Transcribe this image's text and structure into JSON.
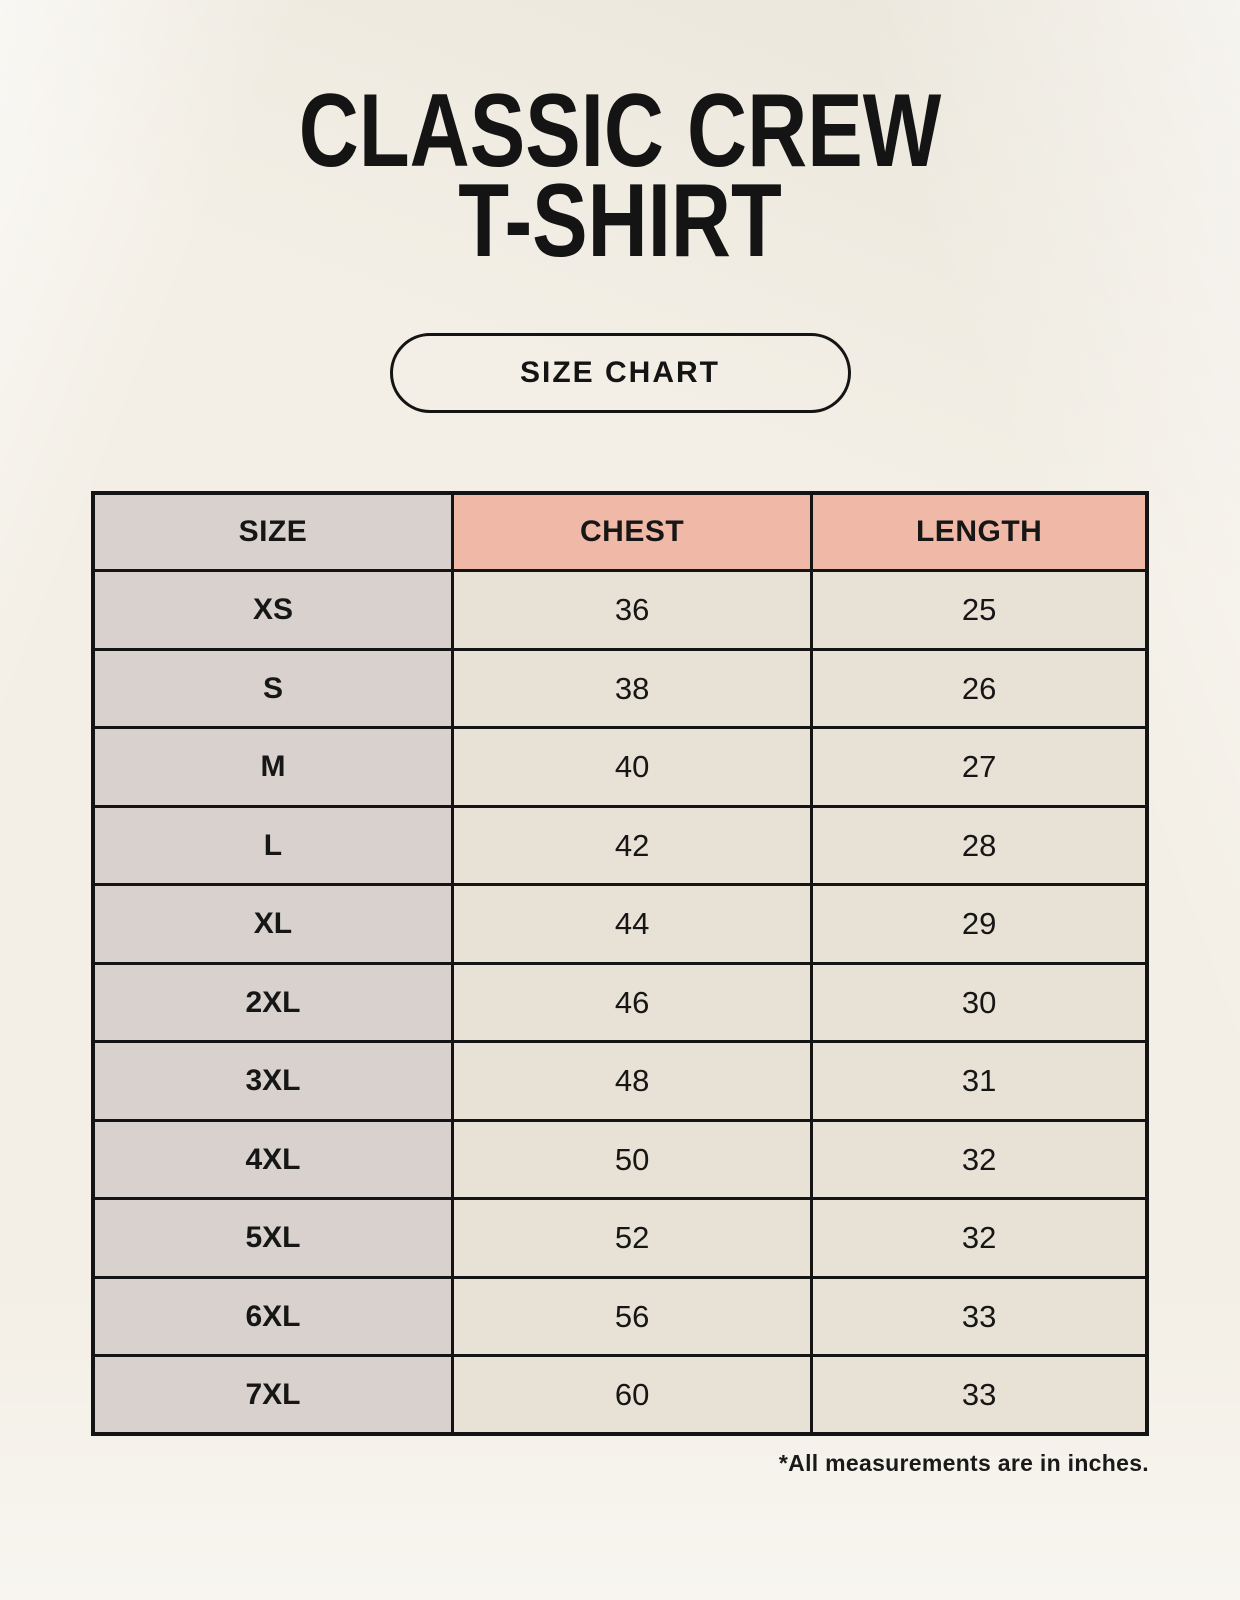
{
  "title": {
    "line1": "CLASSIC CREW",
    "line2": "T-SHIRT"
  },
  "badge": {
    "label": "SIZE CHART"
  },
  "table": {
    "columns": {
      "size": "SIZE",
      "chest": "CHEST",
      "length": "LENGTH"
    },
    "rows": [
      {
        "size": "XS",
        "chest": "36",
        "length": "25"
      },
      {
        "size": "S",
        "chest": "38",
        "length": "26"
      },
      {
        "size": "M",
        "chest": "40",
        "length": "27"
      },
      {
        "size": "L",
        "chest": "42",
        "length": "28"
      },
      {
        "size": "XL",
        "chest": "44",
        "length": "29"
      },
      {
        "size": "2XL",
        "chest": "46",
        "length": "30"
      },
      {
        "size": "3XL",
        "chest": "48",
        "length": "31"
      },
      {
        "size": "4XL",
        "chest": "50",
        "length": "32"
      },
      {
        "size": "5XL",
        "chest": "52",
        "length": "32"
      },
      {
        "size": "6XL",
        "chest": "56",
        "length": "33"
      },
      {
        "size": "7XL",
        "chest": "60",
        "length": "33"
      }
    ]
  },
  "footnote": "*All measurements are in inches.",
  "colors": {
    "background": "#f3efe6",
    "header_accent": "#f0b8a6",
    "size_column": "#d8d1cd",
    "value_cell": "#e8e1d5",
    "border": "#141414"
  }
}
